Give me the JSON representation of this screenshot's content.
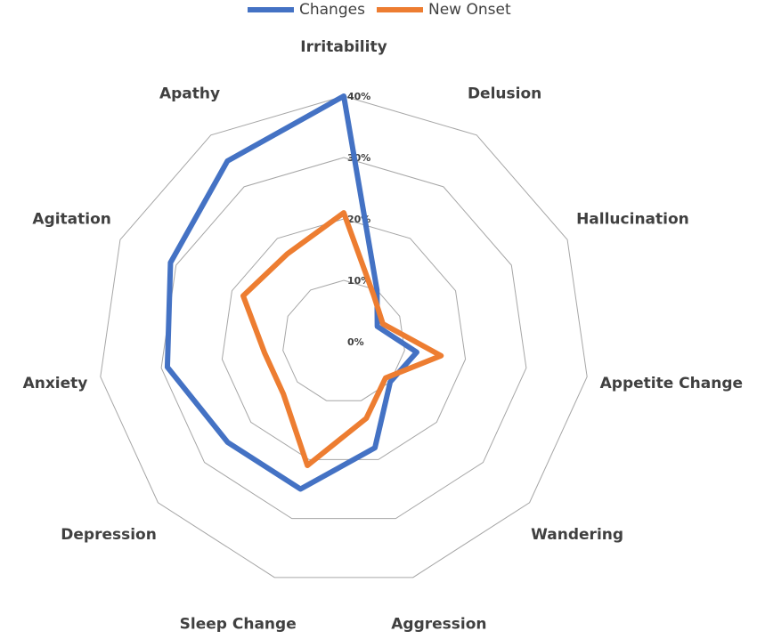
{
  "chart_data": {
    "type": "radar",
    "categories": [
      "Irritability",
      "Delusion",
      "Hallucination",
      "Appetite Change",
      "Wandering",
      "Aggression",
      "Sleep Change",
      "Depression",
      "Anxiety",
      "Agitation",
      "Apathy"
    ],
    "series": [
      {
        "name": "Changes",
        "color": "#4472c4",
        "values": [
          40,
          10,
          6,
          12,
          10,
          18,
          25,
          25,
          29,
          31,
          35
        ]
      },
      {
        "name": "New Onset",
        "color": "#ed7d31",
        "values": [
          21,
          9,
          7,
          16,
          9,
          13,
          21,
          13,
          13,
          18,
          17
        ]
      }
    ],
    "ylim": [
      0,
      40
    ],
    "yticks": [
      {
        "value": 0,
        "label": "0%"
      },
      {
        "value": 10,
        "label": "10%"
      },
      {
        "value": 20,
        "label": "20%"
      },
      {
        "value": 30,
        "label": "30%"
      },
      {
        "value": 40,
        "label": "40%"
      }
    ],
    "grid": true,
    "legend": "top"
  }
}
